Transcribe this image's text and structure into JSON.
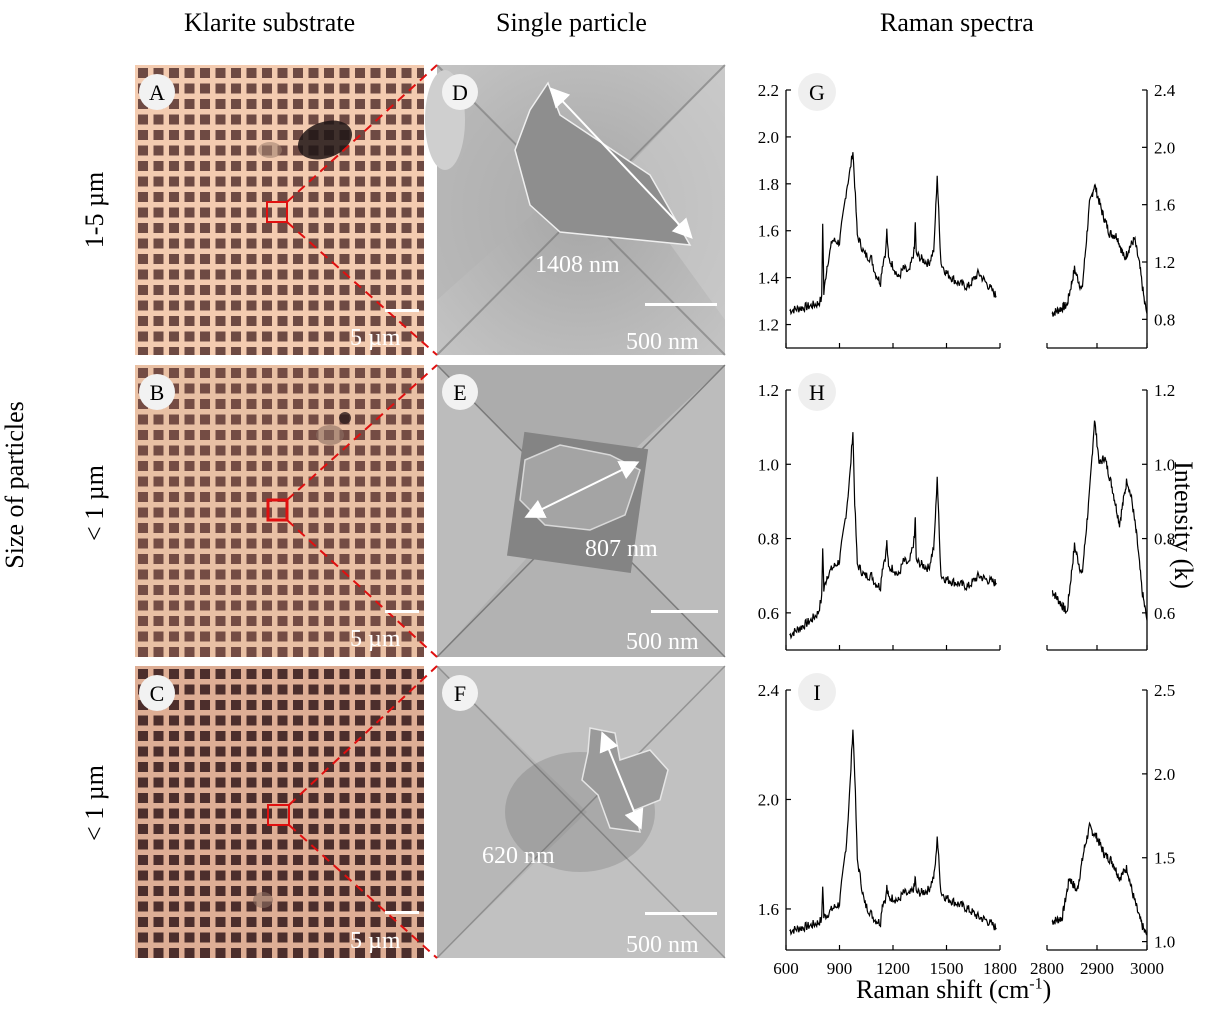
{
  "column_headers": [
    "Klarite substrate",
    "Single particle",
    "Raman spectra"
  ],
  "side_label": "Size of particles",
  "rows": [
    {
      "size_label": "1-5 µm",
      "substrate_letter": "A",
      "particle_letter": "D",
      "spectrum_letter": "G",
      "substrate_scale": "5 µm",
      "particle_scale": "500 nm",
      "particle_size": "1408 nm",
      "substrate_tint": "#c69f8a"
    },
    {
      "size_label": "< 1 µm",
      "substrate_letter": "B",
      "particle_letter": "E",
      "spectrum_letter": "H",
      "substrate_scale": "5 µm",
      "particle_scale": "500 nm",
      "particle_size": "807 nm",
      "substrate_tint": "#b98e7c"
    },
    {
      "size_label": "< 1 µm",
      "substrate_letter": "C",
      "particle_letter": "F",
      "spectrum_letter": "I",
      "substrate_scale": "5 µm",
      "particle_scale": "500 nm",
      "particle_size": "620 nm",
      "substrate_tint": "#a47a6d"
    }
  ],
  "y_axis_right_label": "Intensity (k)",
  "x_axis_label": "Raman shift (cm",
  "x_axis_label_sup": "-1",
  "x_axis_label_end": ")",
  "colors": {
    "highlight": "#e01010",
    "trace": "#000000"
  },
  "chart_data": [
    {
      "type": "line",
      "panel": "G",
      "x_left_ticks": [
        "600",
        "900",
        "1200",
        "1500",
        "1800"
      ],
      "x_right_ticks": [
        "2800",
        "2900",
        "3000"
      ],
      "xlim_left": [
        600,
        1800
      ],
      "xlim_right": [
        2800,
        3000
      ],
      "ylim_left": [
        1.1,
        2.2
      ],
      "ylim_right": [
        0.6,
        2.4
      ],
      "y_left_ticks": [
        "1.2",
        "1.4",
        "1.6",
        "1.8",
        "2.0",
        "2.2"
      ],
      "y_right_ticks": [
        "0.8",
        "1.2",
        "1.6",
        "2.0",
        "2.4"
      ],
      "x_left": [
        620,
        680,
        740,
        780,
        800,
        806,
        812,
        830,
        860,
        900,
        940,
        960,
        975,
        985,
        1000,
        1040,
        1080,
        1100,
        1130,
        1140,
        1160,
        1165,
        1175,
        1200,
        1230,
        1260,
        1290,
        1320,
        1325,
        1330,
        1360,
        1400,
        1430,
        1440,
        1448,
        1460,
        1470,
        1500,
        1560,
        1620,
        1660,
        1680,
        1720,
        1780
      ],
      "y_left": [
        1.26,
        1.27,
        1.28,
        1.29,
        1.31,
        1.64,
        1.33,
        1.45,
        1.56,
        1.55,
        1.78,
        1.86,
        1.94,
        1.8,
        1.58,
        1.5,
        1.48,
        1.42,
        1.38,
        1.45,
        1.52,
        1.6,
        1.48,
        1.45,
        1.4,
        1.44,
        1.42,
        1.52,
        1.64,
        1.5,
        1.48,
        1.46,
        1.52,
        1.7,
        1.84,
        1.6,
        1.46,
        1.42,
        1.38,
        1.36,
        1.4,
        1.42,
        1.38,
        1.32
      ],
      "x_right": [
        2810,
        2840,
        2855,
        2870,
        2885,
        2895,
        2910,
        2925,
        2940,
        2955,
        2965,
        2975,
        2985,
        2995,
        3000
      ],
      "y_right": [
        0.84,
        0.9,
        1.15,
        1.0,
        1.6,
        1.74,
        1.55,
        1.4,
        1.38,
        1.22,
        1.3,
        1.36,
        1.18,
        0.92,
        0.84
      ]
    },
    {
      "type": "line",
      "panel": "H",
      "x_left_ticks": [
        "600",
        "900",
        "1200",
        "1500",
        "1800"
      ],
      "x_right_ticks": [
        "2800",
        "2900",
        "3000"
      ],
      "xlim_left": [
        600,
        1800
      ],
      "xlim_right": [
        2800,
        3000
      ],
      "ylim_left": [
        0.5,
        1.2
      ],
      "ylim_right": [
        0.5,
        1.2
      ],
      "y_left_ticks": [
        "0.6",
        "0.8",
        "1.0",
        "1.2"
      ],
      "y_right_ticks": [
        "0.6",
        "0.8",
        "1.0",
        "1.2"
      ],
      "x_left": [
        620,
        680,
        740,
        780,
        800,
        806,
        812,
        830,
        860,
        900,
        940,
        960,
        975,
        985,
        1000,
        1040,
        1080,
        1100,
        1130,
        1140,
        1160,
        1165,
        1175,
        1200,
        1230,
        1260,
        1290,
        1320,
        1325,
        1330,
        1360,
        1400,
        1430,
        1440,
        1448,
        1460,
        1470,
        1500,
        1560,
        1620,
        1660,
        1680,
        1720,
        1780
      ],
      "y_left": [
        0.54,
        0.56,
        0.58,
        0.6,
        0.64,
        0.78,
        0.66,
        0.7,
        0.72,
        0.74,
        0.88,
        0.98,
        1.09,
        0.9,
        0.73,
        0.7,
        0.7,
        0.68,
        0.67,
        0.72,
        0.76,
        0.79,
        0.72,
        0.72,
        0.7,
        0.74,
        0.73,
        0.8,
        0.86,
        0.74,
        0.73,
        0.72,
        0.78,
        0.88,
        0.97,
        0.8,
        0.7,
        0.69,
        0.68,
        0.67,
        0.69,
        0.7,
        0.69,
        0.68
      ],
      "x_right": [
        2810,
        2840,
        2855,
        2870,
        2885,
        2895,
        2905,
        2915,
        2930,
        2945,
        2960,
        2970,
        2980,
        2990,
        3000
      ],
      "y_right": [
        0.66,
        0.6,
        0.78,
        0.7,
        0.92,
        1.12,
        1.0,
        1.02,
        0.94,
        0.84,
        0.96,
        0.9,
        0.8,
        0.66,
        0.58
      ]
    },
    {
      "type": "line",
      "panel": "I",
      "x_left_ticks": [
        "600",
        "900",
        "1200",
        "1500",
        "1800"
      ],
      "x_right_ticks": [
        "2800",
        "2900",
        "3000"
      ],
      "xlim_left": [
        600,
        1800
      ],
      "xlim_right": [
        2800,
        3000
      ],
      "ylim_left": [
        1.45,
        2.4
      ],
      "ylim_right": [
        0.95,
        2.5
      ],
      "y_left_ticks": [
        "1.6",
        "2.0",
        "2.4"
      ],
      "y_right_ticks": [
        "1.0",
        "1.5",
        "2.0",
        "2.5"
      ],
      "x_left": [
        620,
        680,
        740,
        780,
        800,
        806,
        812,
        830,
        860,
        900,
        940,
        960,
        975,
        985,
        1000,
        1040,
        1080,
        1100,
        1130,
        1140,
        1160,
        1165,
        1175,
        1200,
        1230,
        1260,
        1290,
        1320,
        1325,
        1330,
        1360,
        1400,
        1430,
        1440,
        1448,
        1460,
        1470,
        1500,
        1560,
        1620,
        1660,
        1680,
        1720,
        1780
      ],
      "y_left": [
        1.52,
        1.53,
        1.54,
        1.55,
        1.56,
        1.69,
        1.57,
        1.58,
        1.6,
        1.62,
        1.85,
        2.06,
        2.26,
        2.1,
        1.78,
        1.62,
        1.58,
        1.56,
        1.55,
        1.62,
        1.64,
        1.68,
        1.64,
        1.64,
        1.63,
        1.66,
        1.65,
        1.68,
        1.72,
        1.66,
        1.66,
        1.67,
        1.72,
        1.78,
        1.87,
        1.74,
        1.66,
        1.64,
        1.62,
        1.6,
        1.58,
        1.57,
        1.56,
        1.53
      ],
      "x_right": [
        2810,
        2830,
        2845,
        2860,
        2875,
        2885,
        2900,
        2915,
        2930,
        2945,
        2960,
        2970,
        2985,
        2995,
        3000
      ],
      "y_right": [
        1.12,
        1.14,
        1.38,
        1.3,
        1.56,
        1.68,
        1.62,
        1.52,
        1.48,
        1.38,
        1.44,
        1.3,
        1.14,
        1.06,
        1.04
      ]
    }
  ]
}
